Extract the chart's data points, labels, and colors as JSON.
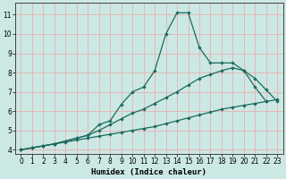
{
  "xlabel": "Humidex (Indice chaleur)",
  "ylabel": "",
  "bg_color": "#cce8e4",
  "grid_color": "#e8b0b0",
  "line_color": "#1a6b5e",
  "xlim": [
    -0.5,
    23.5
  ],
  "ylim": [
    3.8,
    11.6
  ],
  "yticks": [
    4,
    5,
    6,
    7,
    8,
    9,
    10,
    11
  ],
  "xticks": [
    0,
    1,
    2,
    3,
    4,
    5,
    6,
    7,
    8,
    9,
    10,
    11,
    12,
    13,
    14,
    15,
    16,
    17,
    18,
    19,
    20,
    21,
    22,
    23
  ],
  "line1_x": [
    0,
    1,
    2,
    3,
    4,
    5,
    6,
    7,
    8,
    9,
    10,
    11,
    12,
    13,
    14,
    15,
    16,
    17,
    18,
    19,
    20,
    21,
    22,
    23
  ],
  "line1_y": [
    4.0,
    4.1,
    4.2,
    4.3,
    4.4,
    4.5,
    4.6,
    4.7,
    4.8,
    4.9,
    5.0,
    5.1,
    5.2,
    5.35,
    5.5,
    5.65,
    5.8,
    5.95,
    6.1,
    6.2,
    6.3,
    6.4,
    6.5,
    6.6
  ],
  "line2_x": [
    0,
    1,
    2,
    3,
    4,
    5,
    6,
    7,
    8,
    9,
    10,
    11,
    12,
    13,
    14,
    15,
    16,
    17,
    18,
    19,
    20,
    21,
    22,
    23
  ],
  "line2_y": [
    4.0,
    4.1,
    4.2,
    4.3,
    4.45,
    4.6,
    4.75,
    5.0,
    5.3,
    5.6,
    5.9,
    6.1,
    6.4,
    6.7,
    7.0,
    7.35,
    7.7,
    7.9,
    8.1,
    8.25,
    8.1,
    7.7,
    7.1,
    6.5
  ],
  "line3_x": [
    0,
    1,
    2,
    3,
    4,
    5,
    6,
    7,
    8,
    9,
    10,
    11,
    12,
    13,
    14,
    15,
    16,
    17,
    18,
    19,
    20,
    21,
    22,
    23
  ],
  "line3_y": [
    4.0,
    4.1,
    4.2,
    4.3,
    4.45,
    4.6,
    4.75,
    5.3,
    5.5,
    6.35,
    7.0,
    7.25,
    8.1,
    10.0,
    11.1,
    11.1,
    9.3,
    8.5,
    8.5,
    8.5,
    8.1,
    7.25,
    6.5,
    null
  ]
}
